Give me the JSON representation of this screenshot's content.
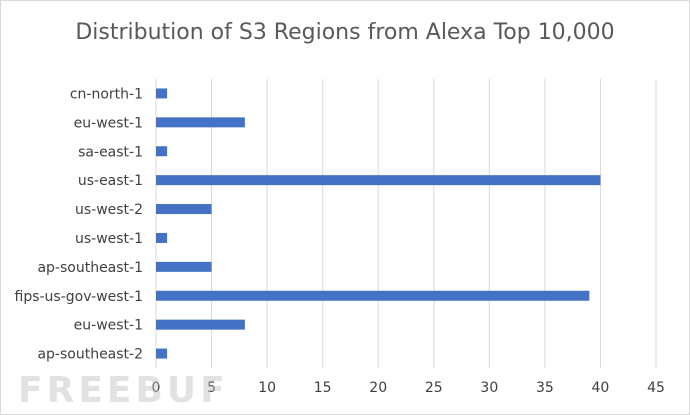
{
  "chart_data": {
    "type": "bar",
    "orientation": "horizontal",
    "title": "Distribution of S3 Regions from Alexa Top 10,000",
    "categories": [
      "cn-north-1",
      "eu-west-1",
      "sa-east-1",
      "us-east-1",
      "us-west-2",
      "us-west-1",
      "ap-southeast-1",
      "fips-us-gov-west-1",
      "eu-west-1",
      "ap-southeast-2"
    ],
    "values": [
      1,
      8,
      1,
      40,
      5,
      1,
      5,
      39,
      8,
      1
    ],
    "xlim": [
      0,
      45
    ],
    "xticks": [
      0,
      5,
      10,
      15,
      20,
      25,
      30,
      35,
      40,
      45
    ],
    "xlabel": "",
    "ylabel": "",
    "grid": "vertical",
    "legend": "none",
    "bar_color": "#4472c4",
    "grid_color": "#d9d9d9"
  },
  "watermark": "FREEBUF"
}
